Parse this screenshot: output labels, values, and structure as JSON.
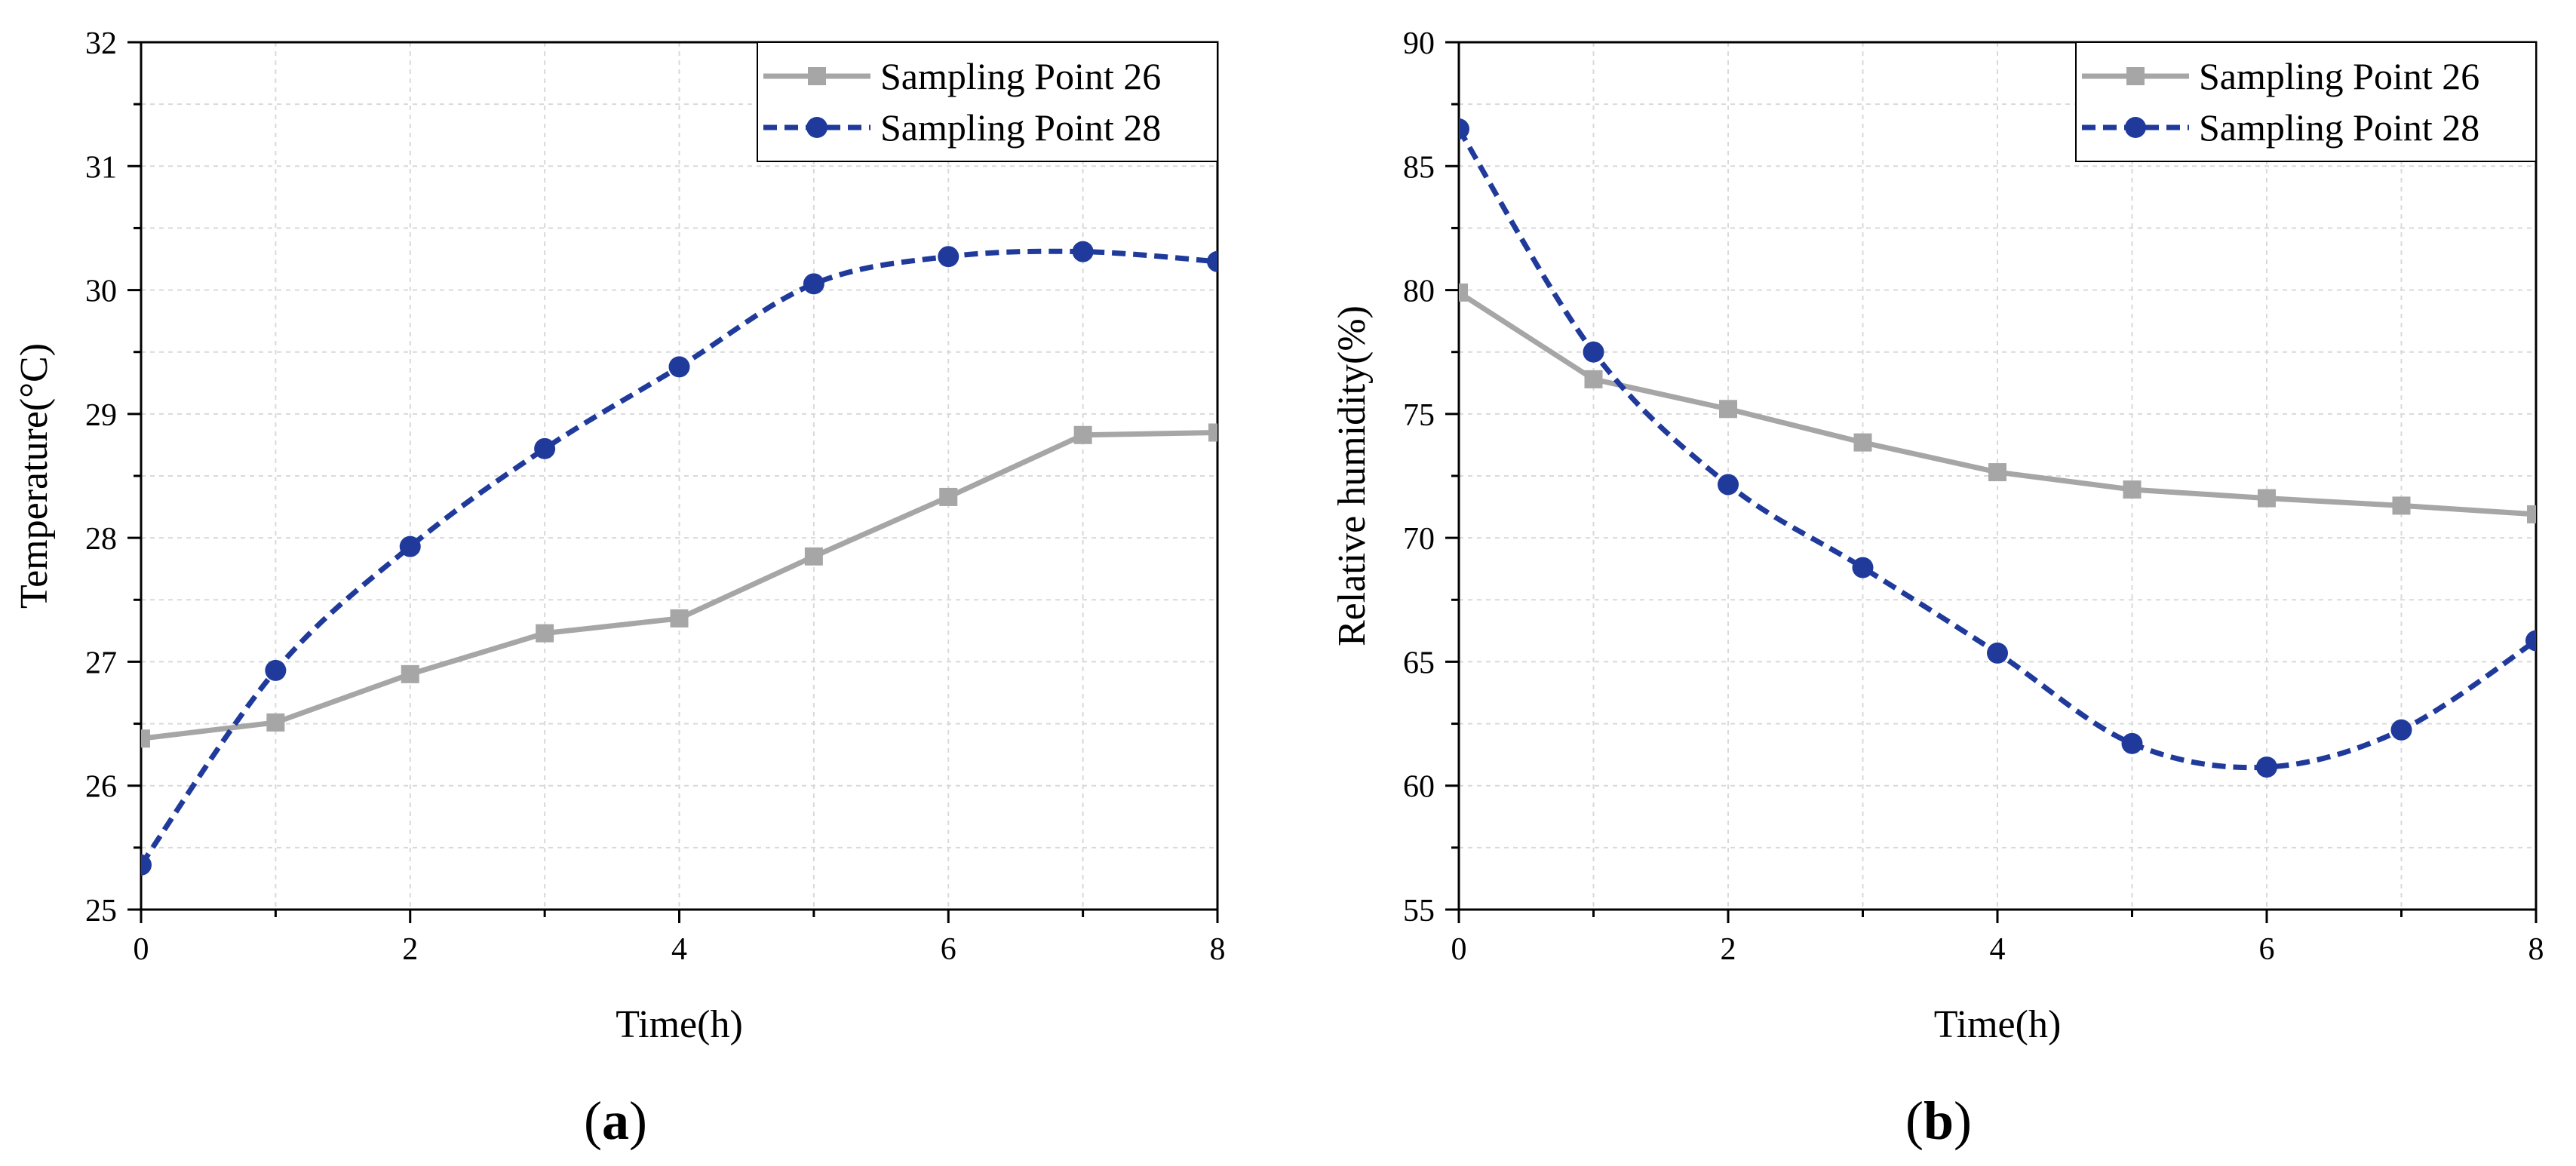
{
  "chart_data": [
    {
      "type": "line",
      "panel_label": "a",
      "xlabel": "Time(h)",
      "ylabel": "Temperature(°C)",
      "xlim": [
        0,
        8
      ],
      "ylim": [
        25,
        32
      ],
      "xticks": [
        0,
        2,
        4,
        6,
        8
      ],
      "yticks": [
        25,
        26,
        27,
        28,
        29,
        30,
        31,
        32
      ],
      "grid": true,
      "legend_position": "top-right",
      "series": [
        {
          "name": "Sampling Point 26",
          "color": "#a6a6a6",
          "marker": "square",
          "line_style": "solid",
          "x": [
            0,
            1,
            2,
            3,
            4,
            5,
            6,
            7,
            8
          ],
          "y": [
            26.38,
            26.51,
            26.9,
            27.23,
            27.35,
            27.85,
            28.33,
            28.83,
            28.85
          ]
        },
        {
          "name": "Sampling Point 28",
          "color": "#1f3a9b",
          "marker": "circle",
          "line_style": "dashed",
          "x": [
            0,
            1,
            2,
            3,
            4,
            5,
            6,
            7,
            8
          ],
          "y": [
            25.36,
            26.93,
            27.93,
            28.72,
            29.38,
            30.05,
            30.27,
            30.31,
            30.23
          ]
        }
      ]
    },
    {
      "type": "line",
      "panel_label": "b",
      "xlabel": "Time(h)",
      "ylabel": "Relative humidity(%)",
      "xlim": [
        0,
        8
      ],
      "ylim": [
        55,
        90
      ],
      "xticks": [
        0,
        2,
        4,
        6,
        8
      ],
      "yticks": [
        55,
        60,
        65,
        70,
        75,
        80,
        85,
        90
      ],
      "grid": true,
      "legend_position": "top-right",
      "series": [
        {
          "name": "Sampling Point 26",
          "color": "#a6a6a6",
          "marker": "square",
          "line_style": "solid",
          "x": [
            0,
            1,
            2,
            3,
            4,
            5,
            6,
            7,
            8
          ],
          "y": [
            79.9,
            76.4,
            75.2,
            73.85,
            72.65,
            71.95,
            71.6,
            71.3,
            70.95
          ]
        },
        {
          "name": "Sampling Point 28",
          "color": "#1f3a9b",
          "marker": "circle",
          "line_style": "dashed",
          "x": [
            0,
            1,
            2,
            3,
            4,
            5,
            6,
            7,
            8
          ],
          "y": [
            86.5,
            77.5,
            72.15,
            68.8,
            65.35,
            61.7,
            60.75,
            62.25,
            65.85
          ]
        }
      ]
    }
  ]
}
